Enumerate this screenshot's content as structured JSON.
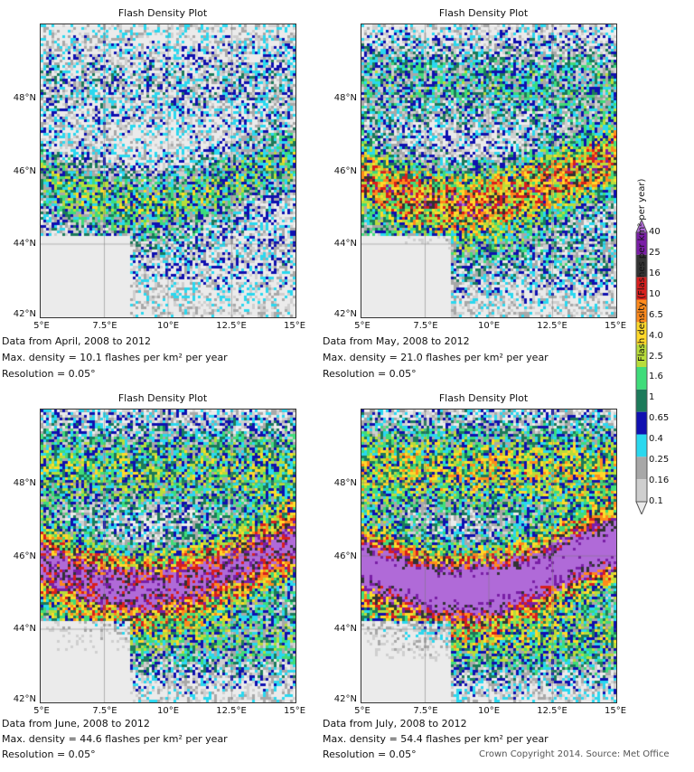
{
  "panels": [
    {
      "title": "Flash Density Plot",
      "line1": "Data from April, 2008 to 2012",
      "line2": "Max. density = 10.1 flashes per km² per year",
      "line3": "Resolution = 0.05°",
      "intensity": 0.35
    },
    {
      "title": "Flash Density Plot",
      "line1": "Data from May, 2008 to 2012",
      "line2": "Max. density = 21.0 flashes per km² per year",
      "line3": "Resolution = 0.05°",
      "intensity": 0.6
    },
    {
      "title": "Flash Density Plot",
      "line1": "Data from June, 2008 to 2012",
      "line2": "Max. density = 44.6 flashes per km² per year",
      "line3": "Resolution = 0.05°",
      "intensity": 0.82
    },
    {
      "title": "Flash Density Plot",
      "line1": "Data from July, 2008 to 2012",
      "line2": "Max. density = 54.4 flashes per km² per year",
      "line3": "Resolution = 0.05°",
      "intensity": 1.0
    }
  ],
  "axes": {
    "y_ticks": [
      "48°N",
      "46°N",
      "44°N",
      "42°N"
    ],
    "x_ticks": [
      "5°E",
      "7.5°E",
      "10°E",
      "12.5°E",
      "15°E"
    ]
  },
  "colorbar": {
    "title": "Flash density (Flashes per km² per year)",
    "levels": [
      "40",
      "25",
      "16",
      "10",
      "6.5",
      "4.0",
      "2.5",
      "1.6",
      "1",
      "0.65",
      "0.4",
      "0.25",
      "0.16",
      "0.1"
    ],
    "colors": [
      "#b06ad8",
      "#7a1ea6",
      "#333333",
      "#d81e1e",
      "#ff8a1c",
      "#ffd92a",
      "#b8dd3a",
      "#3fdc7a",
      "#1c7a5a",
      "#1010b0",
      "#2ad8ef",
      "#a8a8a8",
      "#cfcfcf",
      "#ebebeb"
    ]
  },
  "copyright": "Crown Copyright 2014. Source: Met Office"
}
